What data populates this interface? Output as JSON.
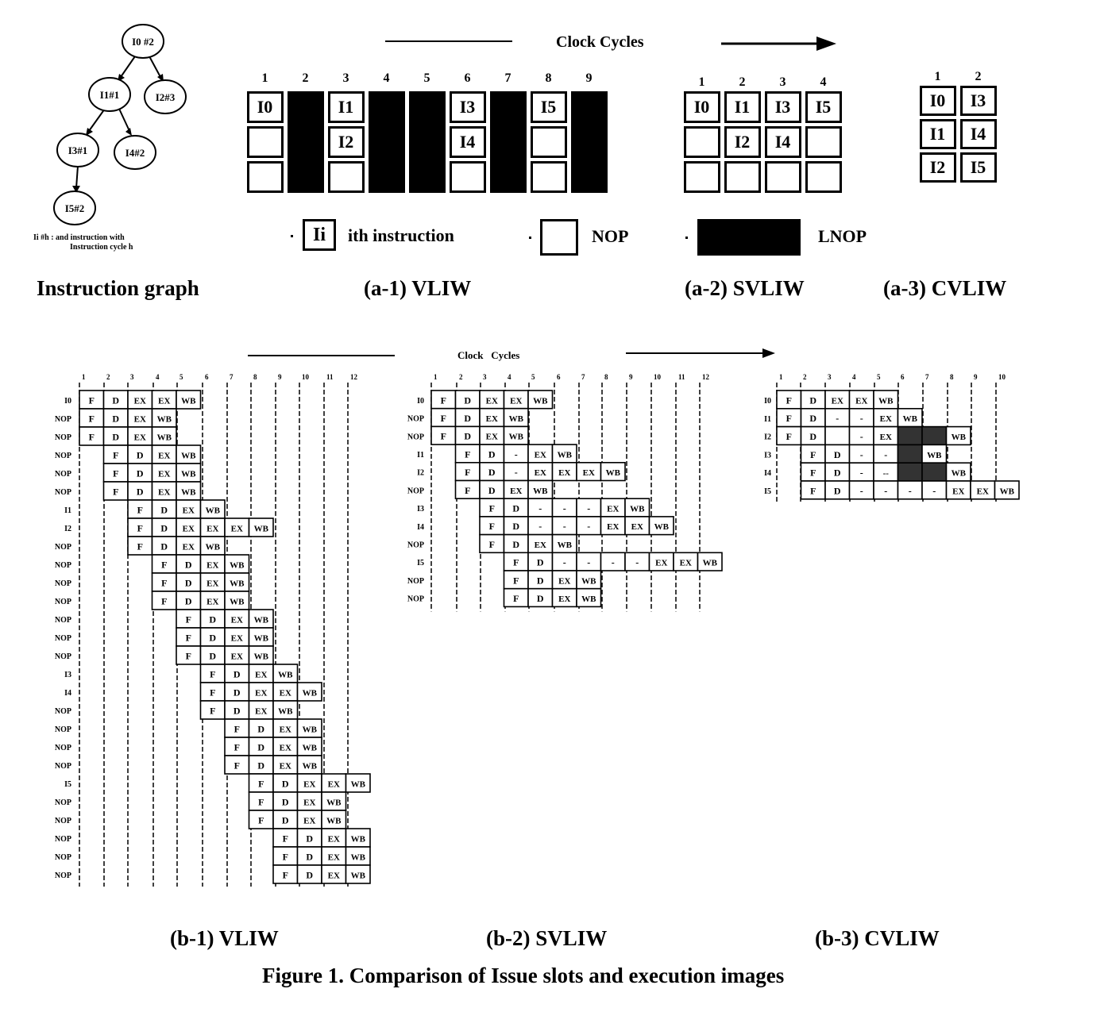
{
  "graph": {
    "nodes": [
      {
        "id": "n0",
        "label": "I0 #2"
      },
      {
        "id": "n1",
        "label": "I1#1"
      },
      {
        "id": "n2",
        "label": "I2#3"
      },
      {
        "id": "n3",
        "label": "I3#1"
      },
      {
        "id": "n4",
        "label": "I4#2"
      },
      {
        "id": "n5",
        "label": "I5#2"
      }
    ],
    "note_line1": "Ii #h :  and  instruction with",
    "note_line2": "Instruction cycle      h"
  },
  "top_axis_label": "Clock Cycles",
  "bottom_axis_label": "Clock   Cycles",
  "a1": {
    "cycles": [
      "1",
      "2",
      "3",
      "4",
      "5",
      "6",
      "7",
      "8",
      "9"
    ],
    "slots": [
      [
        "I0",
        "",
        ""
      ],
      "L",
      [
        "I1",
        "I2",
        ""
      ],
      "L",
      "L",
      [
        "I3",
        "I4",
        ""
      ],
      "L",
      [
        "I5",
        "",
        ""
      ],
      "L"
    ]
  },
  "a2": {
    "cycles": [
      "1",
      "2",
      "3",
      "4"
    ],
    "slots": [
      [
        "I0",
        "",
        ""
      ],
      [
        "I1",
        "I2",
        ""
      ],
      [
        "I3",
        "I4",
        ""
      ],
      [
        "I5",
        "",
        ""
      ]
    ]
  },
  "a3": {
    "cycles": [
      "1",
      "2"
    ],
    "slots": [
      [
        "I0",
        "I1",
        "I2"
      ],
      [
        "I3",
        "I4",
        "I5"
      ]
    ]
  },
  "legend": {
    "instr_box": "Ii",
    "instr_text": "ith instruction",
    "nop": "NOP",
    "lnop": "LNOP"
  },
  "captions": {
    "graph": "Instruction graph",
    "a1": "(a-1) VLIW",
    "a2": "(a-2) SVLIW",
    "a3": "(a-3) CVLIW",
    "b1": "(b-1) VLIW",
    "b2": "(b-2) SVLIW",
    "b3": "(b-3) CVLIW",
    "figure": "Figure 1. Comparison of Issue slots and execution images"
  },
  "b1": {
    "ticks": [
      "1",
      "2",
      "3",
      "4",
      "5",
      "6",
      "7",
      "8",
      "9",
      "10",
      "11",
      "12"
    ],
    "rows": [
      {
        "label": "I0",
        "start": 0,
        "stages": [
          "F",
          "D",
          "EX",
          "EX",
          "WB"
        ]
      },
      {
        "label": "NOP",
        "start": 0,
        "stages": [
          "F",
          "D",
          "EX",
          "WB"
        ]
      },
      {
        "label": "NOP",
        "start": 0,
        "stages": [
          "F",
          "D",
          "EX",
          "WB"
        ]
      },
      {
        "label": "NOP",
        "start": 1,
        "stages": [
          "F",
          "D",
          "EX",
          "WB"
        ]
      },
      {
        "label": "NOP",
        "start": 1,
        "stages": [
          "F",
          "D",
          "EX",
          "WB"
        ]
      },
      {
        "label": "NOP",
        "start": 1,
        "stages": [
          "F",
          "D",
          "EX",
          "WB"
        ]
      },
      {
        "label": "I1",
        "start": 2,
        "stages": [
          "F",
          "D",
          "EX",
          "WB"
        ]
      },
      {
        "label": "I2",
        "start": 2,
        "stages": [
          "F",
          "D",
          "EX",
          "EX",
          "EX",
          "WB"
        ]
      },
      {
        "label": "NOP",
        "start": 2,
        "stages": [
          "F",
          "D",
          "EX",
          "WB"
        ]
      },
      {
        "label": "NOP",
        "start": 3,
        "stages": [
          "F",
          "D",
          "EX",
          "WB"
        ]
      },
      {
        "label": "NOP",
        "start": 3,
        "stages": [
          "F",
          "D",
          "EX",
          "WB"
        ]
      },
      {
        "label": "NOP",
        "start": 3,
        "stages": [
          "F",
          "D",
          "EX",
          "WB"
        ]
      },
      {
        "label": "NOP",
        "start": 4,
        "stages": [
          "F",
          "D",
          "EX",
          "WB"
        ]
      },
      {
        "label": "NOP",
        "start": 4,
        "stages": [
          "F",
          "D",
          "EX",
          "WB"
        ]
      },
      {
        "label": "NOP",
        "start": 4,
        "stages": [
          "F",
          "D",
          "EX",
          "WB"
        ]
      },
      {
        "label": "I3",
        "start": 5,
        "stages": [
          "F",
          "D",
          "EX",
          "WB"
        ]
      },
      {
        "label": "I4",
        "start": 5,
        "stages": [
          "F",
          "D",
          "EX",
          "EX",
          "WB"
        ]
      },
      {
        "label": "NOP",
        "start": 5,
        "stages": [
          "F",
          "D",
          "EX",
          "WB"
        ]
      },
      {
        "label": "NOP",
        "start": 6,
        "stages": [
          "F",
          "D",
          "EX",
          "WB"
        ]
      },
      {
        "label": "NOP",
        "start": 6,
        "stages": [
          "F",
          "D",
          "EX",
          "WB"
        ]
      },
      {
        "label": "NOP",
        "start": 6,
        "stages": [
          "F",
          "D",
          "EX",
          "WB"
        ]
      },
      {
        "label": "I5",
        "start": 7,
        "stages": [
          "F",
          "D",
          "EX",
          "EX",
          "WB"
        ]
      },
      {
        "label": "NOP",
        "start": 7,
        "stages": [
          "F",
          "D",
          "EX",
          "WB"
        ]
      },
      {
        "label": "NOP",
        "start": 7,
        "stages": [
          "F",
          "D",
          "EX",
          "WB"
        ]
      },
      {
        "label": "NOP",
        "start": 8,
        "stages": [
          "F",
          "D",
          "EX",
          "WB"
        ]
      },
      {
        "label": "NOP",
        "start": 8,
        "stages": [
          "F",
          "D",
          "EX",
          "WB"
        ]
      },
      {
        "label": "NOP",
        "start": 8,
        "stages": [
          "F",
          "D",
          "EX",
          "WB"
        ]
      }
    ]
  },
  "b2": {
    "ticks": [
      "1",
      "2",
      "3",
      "4",
      "5",
      "6",
      "7",
      "8",
      "9",
      "10",
      "11",
      "12"
    ],
    "rows": [
      {
        "label": "I0",
        "start": 0,
        "stages": [
          "F",
          "D",
          "EX",
          "EX",
          "WB"
        ]
      },
      {
        "label": "NOP",
        "start": 0,
        "stages": [
          "F",
          "D",
          "EX",
          "WB"
        ]
      },
      {
        "label": "NOP",
        "start": 0,
        "stages": [
          "F",
          "D",
          "EX",
          "WB"
        ]
      },
      {
        "label": "I1",
        "start": 1,
        "stages": [
          "F",
          "D",
          "-",
          "EX",
          "WB"
        ]
      },
      {
        "label": "I2",
        "start": 1,
        "stages": [
          "F",
          "D",
          "-",
          "EX",
          "EX",
          "EX",
          "WB"
        ]
      },
      {
        "label": "NOP",
        "start": 1,
        "stages": [
          "F",
          "D",
          "EX",
          "WB"
        ]
      },
      {
        "label": "I3",
        "start": 2,
        "stages": [
          "F",
          "D",
          "-",
          "-",
          "-",
          "EX",
          "WB"
        ]
      },
      {
        "label": "I4",
        "start": 2,
        "stages": [
          "F",
          "D",
          "-",
          "-",
          "-",
          "EX",
          "EX",
          "WB"
        ]
      },
      {
        "label": "NOP",
        "start": 2,
        "stages": [
          "F",
          "D",
          "EX",
          "WB"
        ]
      },
      {
        "label": "I5",
        "start": 3,
        "stages": [
          "F",
          "D",
          "-",
          "-",
          "-",
          "-",
          "EX",
          "EX",
          "WB"
        ]
      },
      {
        "label": "NOP",
        "start": 3,
        "stages": [
          "F",
          "D",
          "EX",
          "WB"
        ]
      },
      {
        "label": "NOP",
        "start": 3,
        "stages": [
          "F",
          "D",
          "EX",
          "WB"
        ]
      }
    ]
  },
  "b3": {
    "ticks": [
      "1",
      "2",
      "3",
      "4",
      "5",
      "6",
      "7",
      "8",
      "9",
      "10"
    ],
    "rows": [
      {
        "label": "I0",
        "start": 0,
        "stages": [
          "F",
          "D",
          "EX",
          "EX",
          "WB"
        ]
      },
      {
        "label": "I1",
        "start": 0,
        "stages": [
          "F",
          "D",
          "-",
          "-",
          "EX",
          "WB"
        ]
      },
      {
        "label": "I2",
        "start": 0,
        "stages": [
          "F",
          "D",
          "",
          "-",
          "EX",
          "*",
          "*",
          "WB"
        ]
      },
      {
        "label": "I3",
        "start": 1,
        "stages": [
          "F",
          "D",
          "-",
          "-",
          "*",
          "WB"
        ]
      },
      {
        "label": "I4",
        "start": 1,
        "stages": [
          "F",
          "D",
          "-",
          "--",
          "*",
          "*",
          "WB"
        ]
      },
      {
        "label": "I5",
        "start": 1,
        "stages": [
          "F",
          "D",
          "-",
          "-",
          "-",
          "-",
          "EX",
          "EX",
          "WB"
        ]
      }
    ]
  }
}
